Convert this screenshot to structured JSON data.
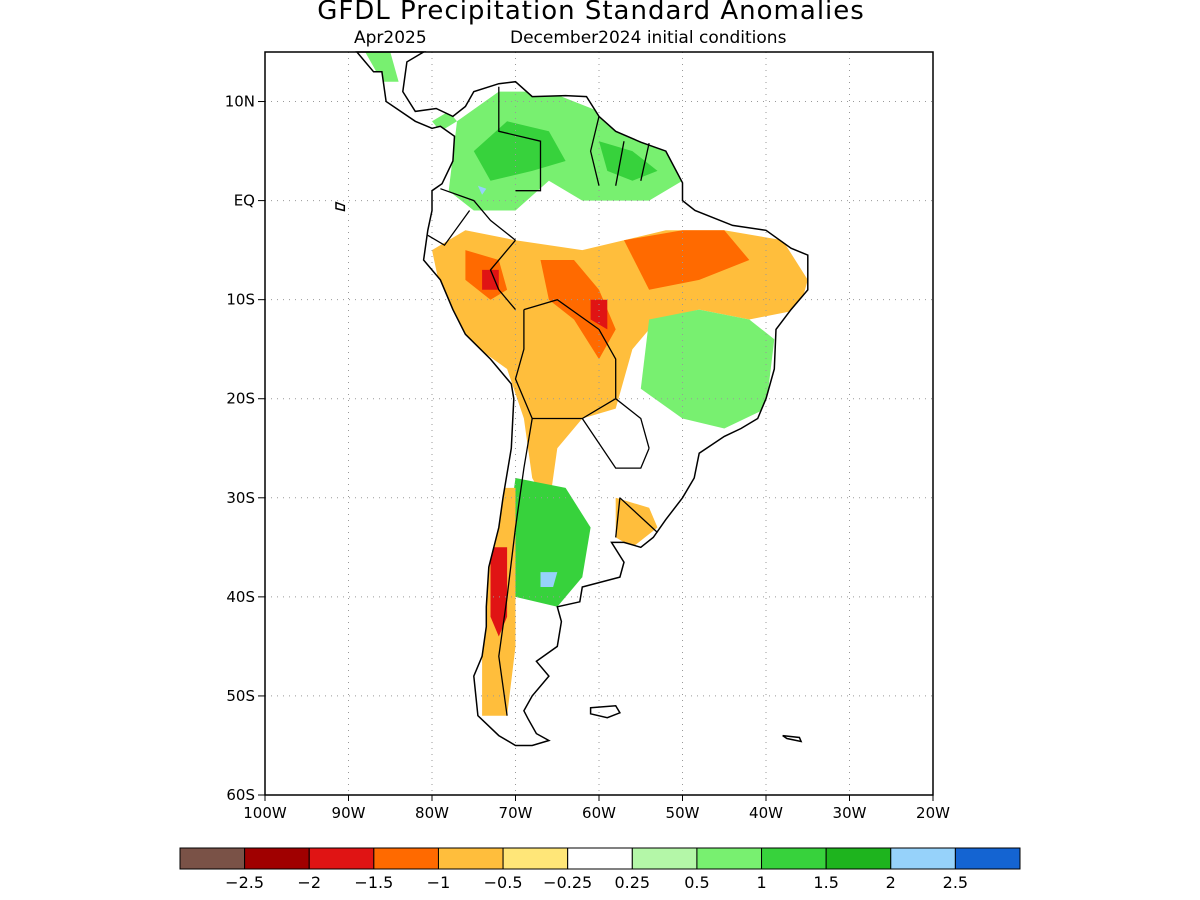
{
  "title": "GFDL Precipitation Standard Anomalies",
  "subtitle_month": "Apr2025",
  "subtitle_init": "December2024 initial conditions",
  "axes": {
    "lon_min": -100,
    "lon_max": -20,
    "lat_min": -60,
    "lat_max": 15,
    "lat_ticks": [
      {
        "v": 10,
        "label": "10N"
      },
      {
        "v": 0,
        "label": "EQ"
      },
      {
        "v": -10,
        "label": "10S"
      },
      {
        "v": -20,
        "label": "20S"
      },
      {
        "v": -30,
        "label": "30S"
      },
      {
        "v": -40,
        "label": "40S"
      },
      {
        "v": -50,
        "label": "50S"
      },
      {
        "v": -60,
        "label": "60S"
      }
    ],
    "lon_ticks": [
      {
        "v": -100,
        "label": "100W"
      },
      {
        "v": -90,
        "label": "90W"
      },
      {
        "v": -80,
        "label": "80W"
      },
      {
        "v": -70,
        "label": "70W"
      },
      {
        "v": -60,
        "label": "60W"
      },
      {
        "v": -50,
        "label": "50W"
      },
      {
        "v": -40,
        "label": "40W"
      },
      {
        "v": -30,
        "label": "30W"
      },
      {
        "v": -20,
        "label": "20W"
      }
    ],
    "grid": "dotted"
  },
  "colorbar": {
    "colors": [
      "#7a5247",
      "#a00000",
      "#e01414",
      "#ff6a00",
      "#ffbe3c",
      "#ffe678",
      "#ffffff",
      "#b4f7a8",
      "#78f070",
      "#37d23c",
      "#1eb41e",
      "#96d2fa",
      "#1464d2"
    ],
    "labels": [
      "−2.5",
      "−2",
      "−1.5",
      "−1",
      "−0.5",
      "−0.25",
      "0.25",
      "0.5",
      "1",
      "1.5",
      "2",
      "2.5"
    ]
  },
  "colors": {
    "land_base": "#ffffff",
    "border": "#000000",
    "gridline": "#999999"
  },
  "regions": [
    {
      "name": "panama-green",
      "level": 0.75,
      "coords": [
        [
          -80,
          8
        ],
        [
          -78,
          9
        ],
        [
          -77,
          8
        ],
        [
          -79,
          7
        ]
      ]
    },
    {
      "name": "central-america-green",
      "level": 0.75,
      "coords": [
        [
          -88,
          15
        ],
        [
          -85,
          15
        ],
        [
          -84,
          12
        ],
        [
          -86,
          12
        ]
      ]
    },
    {
      "name": "nw-wet",
      "level": 0.75,
      "coords": [
        [
          -77,
          8
        ],
        [
          -72,
          11
        ],
        [
          -66,
          11
        ],
        [
          -60,
          9
        ],
        [
          -52,
          7
        ],
        [
          -50,
          2
        ],
        [
          -54,
          0
        ],
        [
          -62,
          0
        ],
        [
          -66,
          2
        ],
        [
          -70,
          -1
        ],
        [
          -75,
          -1
        ],
        [
          -78,
          1
        ]
      ]
    },
    {
      "name": "nw-wet-core",
      "level": 1.25,
      "coords": [
        [
          -75,
          5
        ],
        [
          -71,
          8
        ],
        [
          -66,
          7
        ],
        [
          -64,
          4
        ],
        [
          -68,
          3
        ],
        [
          -73,
          2
        ]
      ]
    },
    {
      "name": "guiana-wet-core",
      "level": 1.25,
      "coords": [
        [
          -60,
          6
        ],
        [
          -56,
          5
        ],
        [
          -53,
          3
        ],
        [
          -56,
          2
        ],
        [
          -59,
          3
        ]
      ]
    },
    {
      "name": "nw-blue",
      "level": 2.25,
      "coords": [
        [
          -74.5,
          1.5
        ],
        [
          -73.5,
          1.2
        ],
        [
          -74,
          0.6
        ]
      ]
    },
    {
      "name": "central-dry",
      "level": -0.75,
      "coords": [
        [
          -80,
          -5
        ],
        [
          -76,
          -3
        ],
        [
          -70,
          -4
        ],
        [
          -62,
          -5
        ],
        [
          -52,
          -3
        ],
        [
          -45,
          -3
        ],
        [
          -38,
          -4
        ],
        [
          -35,
          -8
        ],
        [
          -36,
          -11
        ],
        [
          -42,
          -12
        ],
        [
          -48,
          -11
        ],
        [
          -53,
          -12
        ],
        [
          -56,
          -15
        ],
        [
          -58,
          -21
        ],
        [
          -62,
          -22
        ],
        [
          -65,
          -25
        ],
        [
          -66,
          -31
        ],
        [
          -68,
          -28
        ],
        [
          -69,
          -22
        ],
        [
          -71,
          -17
        ],
        [
          -76,
          -14
        ],
        [
          -79,
          -9
        ]
      ]
    },
    {
      "name": "central-dry-core-1",
      "level": -1.25,
      "coords": [
        [
          -76,
          -5
        ],
        [
          -72,
          -6
        ],
        [
          -71,
          -9
        ],
        [
          -73,
          -10
        ],
        [
          -76,
          -8
        ]
      ]
    },
    {
      "name": "central-dry-core-2",
      "level": -1.25,
      "coords": [
        [
          -67,
          -6
        ],
        [
          -63,
          -6
        ],
        [
          -60,
          -9
        ],
        [
          -58,
          -13
        ],
        [
          -60,
          -16
        ],
        [
          -63,
          -12
        ],
        [
          -66,
          -10
        ]
      ]
    },
    {
      "name": "central-dry-core-3",
      "level": -1.25,
      "coords": [
        [
          -57,
          -4
        ],
        [
          -50,
          -3
        ],
        [
          -45,
          -3
        ],
        [
          -42,
          -6
        ],
        [
          -48,
          -8
        ],
        [
          -54,
          -9
        ]
      ]
    },
    {
      "name": "central-dry-red-1",
      "level": -1.75,
      "coords": [
        [
          -74,
          -7
        ],
        [
          -72,
          -7
        ],
        [
          -72,
          -9
        ],
        [
          -74,
          -9
        ]
      ]
    },
    {
      "name": "central-dry-red-2",
      "level": -1.75,
      "coords": [
        [
          -61,
          -10
        ],
        [
          -59,
          -10
        ],
        [
          -59,
          -13
        ],
        [
          -61,
          -12
        ]
      ]
    },
    {
      "name": "se-brazil-wet",
      "level": 0.75,
      "coords": [
        [
          -54,
          -12
        ],
        [
          -48,
          -11
        ],
        [
          -42,
          -12
        ],
        [
          -39,
          -14
        ],
        [
          -40,
          -21
        ],
        [
          -45,
          -23
        ],
        [
          -50,
          -22
        ],
        [
          -55,
          -19
        ]
      ]
    },
    {
      "name": "pampas-wet",
      "level": 1.25,
      "coords": [
        [
          -70,
          -28
        ],
        [
          -64,
          -29
        ],
        [
          -61,
          -33
        ],
        [
          -62,
          -38
        ],
        [
          -65,
          -41
        ],
        [
          -70,
          -40
        ],
        [
          -71,
          -34
        ]
      ]
    },
    {
      "name": "pampas-blue",
      "level": 2.25,
      "coords": [
        [
          -67,
          -37.5
        ],
        [
          -65,
          -37.5
        ],
        [
          -65.5,
          -39
        ],
        [
          -67,
          -39
        ]
      ]
    },
    {
      "name": "andes-dry",
      "level": -0.75,
      "coords": [
        [
          -73,
          -29
        ],
        [
          -70,
          -29
        ],
        [
          -70,
          -45
        ],
        [
          -71,
          -52
        ],
        [
          -74,
          -52
        ],
        [
          -74,
          -43
        ],
        [
          -73,
          -36
        ]
      ]
    },
    {
      "name": "andes-dry-red",
      "level": -1.75,
      "coords": [
        [
          -73,
          -35
        ],
        [
          -71,
          -35
        ],
        [
          -71,
          -42
        ],
        [
          -72,
          -44
        ],
        [
          -73,
          -42
        ]
      ]
    },
    {
      "name": "uruguay-dry",
      "level": -0.75,
      "coords": [
        [
          -58,
          -30
        ],
        [
          -54,
          -31
        ],
        [
          -53,
          -33
        ],
        [
          -56,
          -35
        ],
        [
          -58,
          -34
        ]
      ]
    }
  ],
  "borders": [
    {
      "name": "colombia-venezuela",
      "coords": [
        [
          -72,
          11.5
        ],
        [
          -72,
          7
        ],
        [
          -67,
          6
        ],
        [
          -67,
          1
        ],
        [
          -70,
          1
        ]
      ]
    },
    {
      "name": "venezuela-guyana",
      "coords": [
        [
          -60,
          8.5
        ],
        [
          -61,
          5
        ],
        [
          -60,
          1.5
        ]
      ]
    },
    {
      "name": "guyana-suriname",
      "coords": [
        [
          -57,
          6
        ],
        [
          -58,
          1.5
        ]
      ]
    },
    {
      "name": "suriname-guiana",
      "coords": [
        [
          -54,
          5.8
        ],
        [
          -55,
          2
        ]
      ]
    },
    {
      "name": "colombia-ecuador-peru",
      "coords": [
        [
          -79,
          1.2
        ],
        [
          -75,
          0
        ],
        [
          -73,
          -2
        ],
        [
          -70,
          -4
        ]
      ]
    },
    {
      "name": "ecuador-peru",
      "coords": [
        [
          -80.5,
          -3.5
        ],
        [
          -78.5,
          -4.5
        ],
        [
          -75.5,
          -1
        ]
      ]
    },
    {
      "name": "peru-brazil",
      "coords": [
        [
          -70,
          -4
        ],
        [
          -73,
          -7
        ],
        [
          -72,
          -9
        ],
        [
          -70,
          -11
        ]
      ]
    },
    {
      "name": "bolivia-brazil",
      "coords": [
        [
          -69,
          -11
        ],
        [
          -65,
          -10
        ],
        [
          -60,
          -13
        ],
        [
          -58,
          -16
        ],
        [
          -58,
          -20
        ]
      ]
    },
    {
      "name": "peru-bolivia-chile",
      "coords": [
        [
          -69,
          -11
        ],
        [
          -69,
          -15
        ],
        [
          -70,
          -18
        ],
        [
          -68,
          -22
        ]
      ]
    },
    {
      "name": "chile-argentina",
      "coords": [
        [
          -68,
          -22
        ],
        [
          -69,
          -27
        ],
        [
          -70,
          -33
        ],
        [
          -71,
          -40
        ],
        [
          -72,
          -46
        ],
        [
          -71,
          -52
        ]
      ]
    },
    {
      "name": "bolivia-argentina-paraguay",
      "coords": [
        [
          -68,
          -22
        ],
        [
          -62,
          -22
        ],
        [
          -58,
          -20
        ],
        [
          -55,
          -22
        ],
        [
          -54,
          -25
        ]
      ]
    },
    {
      "name": "paraguay-argentina",
      "coords": [
        [
          -62,
          -22
        ],
        [
          -58,
          -27
        ],
        [
          -55,
          -27
        ],
        [
          -54,
          -25
        ]
      ]
    },
    {
      "name": "brazil-uruguay",
      "coords": [
        [
          -57.5,
          -30
        ],
        [
          -53,
          -33.5
        ]
      ]
    },
    {
      "name": "argentina-uruguay",
      "coords": [
        [
          -57.5,
          -30
        ],
        [
          -58,
          -34
        ]
      ]
    }
  ],
  "coastline": [
    [
      -81,
      15
    ],
    [
      -83,
      14
    ],
    [
      -83.5,
      11
    ],
    [
      -82,
      9
    ],
    [
      -79.5,
      9.3
    ],
    [
      -77.5,
      8.5
    ],
    [
      -76,
      9.5
    ],
    [
      -75,
      11
    ],
    [
      -72,
      11.8
    ],
    [
      -70,
      12
    ],
    [
      -68,
      10.5
    ],
    [
      -64,
      10.6
    ],
    [
      -61.5,
      10.5
    ],
    [
      -60,
      8.5
    ],
    [
      -58,
      7
    ],
    [
      -55,
      5.9
    ],
    [
      -52,
      5
    ],
    [
      -50,
      1.8
    ],
    [
      -50,
      0
    ],
    [
      -48.5,
      -1
    ],
    [
      -44,
      -2.5
    ],
    [
      -40,
      -3
    ],
    [
      -37,
      -4.8
    ],
    [
      -35,
      -5.5
    ],
    [
      -35,
      -9
    ],
    [
      -37,
      -11
    ],
    [
      -38.8,
      -13
    ],
    [
      -39,
      -17
    ],
    [
      -40,
      -20
    ],
    [
      -41,
      -22
    ],
    [
      -43,
      -23
    ],
    [
      -45,
      -23.8
    ],
    [
      -48,
      -25.5
    ],
    [
      -48.6,
      -28
    ],
    [
      -50,
      -30
    ],
    [
      -52,
      -32.2
    ],
    [
      -53.5,
      -34
    ],
    [
      -55,
      -35
    ],
    [
      -57,
      -34.5
    ],
    [
      -58.5,
      -34.5
    ],
    [
      -57,
      -36.5
    ],
    [
      -57.5,
      -38
    ],
    [
      -62,
      -39
    ],
    [
      -62.3,
      -40.5
    ],
    [
      -65,
      -41
    ],
    [
      -64.5,
      -42.5
    ],
    [
      -65,
      -45
    ],
    [
      -67.5,
      -46.5
    ],
    [
      -66,
      -48
    ],
    [
      -68,
      -50
    ],
    [
      -69,
      -51.5
    ],
    [
      -68.5,
      -52.3
    ],
    [
      -67.5,
      -53.8
    ],
    [
      -66,
      -54.5
    ],
    [
      -68,
      -55
    ],
    [
      -70,
      -55
    ],
    [
      -72,
      -54
    ],
    [
      -74.5,
      -52
    ],
    [
      -75,
      -48
    ],
    [
      -74,
      -46
    ],
    [
      -73.5,
      -43
    ],
    [
      -73.5,
      -41
    ],
    [
      -73.2,
      -37
    ],
    [
      -72,
      -33
    ],
    [
      -71.5,
      -30
    ],
    [
      -70.5,
      -25
    ],
    [
      -70.2,
      -20
    ],
    [
      -70.5,
      -18.5
    ],
    [
      -73,
      -16
    ],
    [
      -76,
      -13.5
    ],
    [
      -77.5,
      -11
    ],
    [
      -79,
      -8
    ],
    [
      -81,
      -6
    ],
    [
      -80.5,
      -3
    ],
    [
      -80,
      -1
    ],
    [
      -80,
      1
    ],
    [
      -78.8,
      1.7
    ],
    [
      -77.5,
      4
    ],
    [
      -77.3,
      6.5
    ],
    [
      -79,
      7.5
    ],
    [
      -80,
      7.3
    ],
    [
      -82,
      8
    ],
    [
      -85.5,
      10
    ],
    [
      -86,
      13
    ],
    [
      -87,
      13
    ],
    [
      -88,
      14
    ],
    [
      -89,
      15
    ]
  ],
  "islands": [
    {
      "name": "falklands",
      "coords": [
        [
          -61,
          -51.2
        ],
        [
          -58,
          -51
        ],
        [
          -57.5,
          -51.7
        ],
        [
          -59,
          -52.2
        ],
        [
          -61,
          -51.8
        ]
      ]
    },
    {
      "name": "galapagos",
      "coords": [
        [
          -91.5,
          -0.2
        ],
        [
          -90.5,
          -0.5
        ],
        [
          -90.5,
          -1
        ],
        [
          -91.5,
          -0.8
        ]
      ]
    },
    {
      "name": "south-georgia",
      "coords": [
        [
          -38,
          -54
        ],
        [
          -36,
          -54.2
        ],
        [
          -35.8,
          -54.6
        ],
        [
          -37.5,
          -54.3
        ]
      ]
    }
  ]
}
